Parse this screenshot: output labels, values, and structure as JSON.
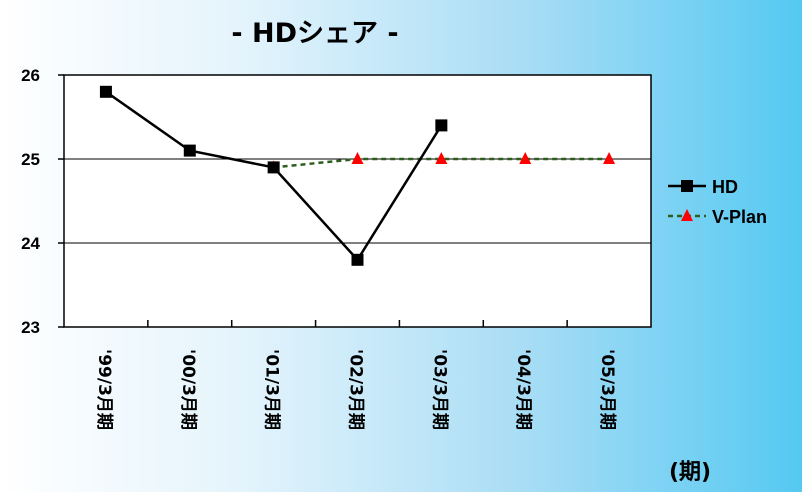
{
  "chart_data": {
    "type": "line",
    "title": "- HDシェア -",
    "x_unit_label": "(期)",
    "categories": [
      "'99/3月期",
      "'00/3月期",
      "'01/3月期",
      "'02/3月期",
      "'03/3月期",
      "'04/3月期",
      "'05/3月期"
    ],
    "ylim": [
      23,
      26
    ],
    "yticks": [
      "23",
      "24",
      "25",
      "26"
    ],
    "grid": true,
    "legend_position": "right",
    "series": [
      {
        "name": "HD",
        "values": [
          25.8,
          25.1,
          24.9,
          23.8,
          25.4,
          null,
          null
        ],
        "color": "#000000",
        "marker": "square",
        "line_style": "solid"
      },
      {
        "name": "V-Plan",
        "values": [
          null,
          null,
          24.9,
          25.0,
          25.0,
          25.0,
          25.0
        ],
        "color": "#2e5e1e",
        "marker_color": "#ff0000",
        "marker": "triangle",
        "line_style": "dashed"
      }
    ]
  }
}
